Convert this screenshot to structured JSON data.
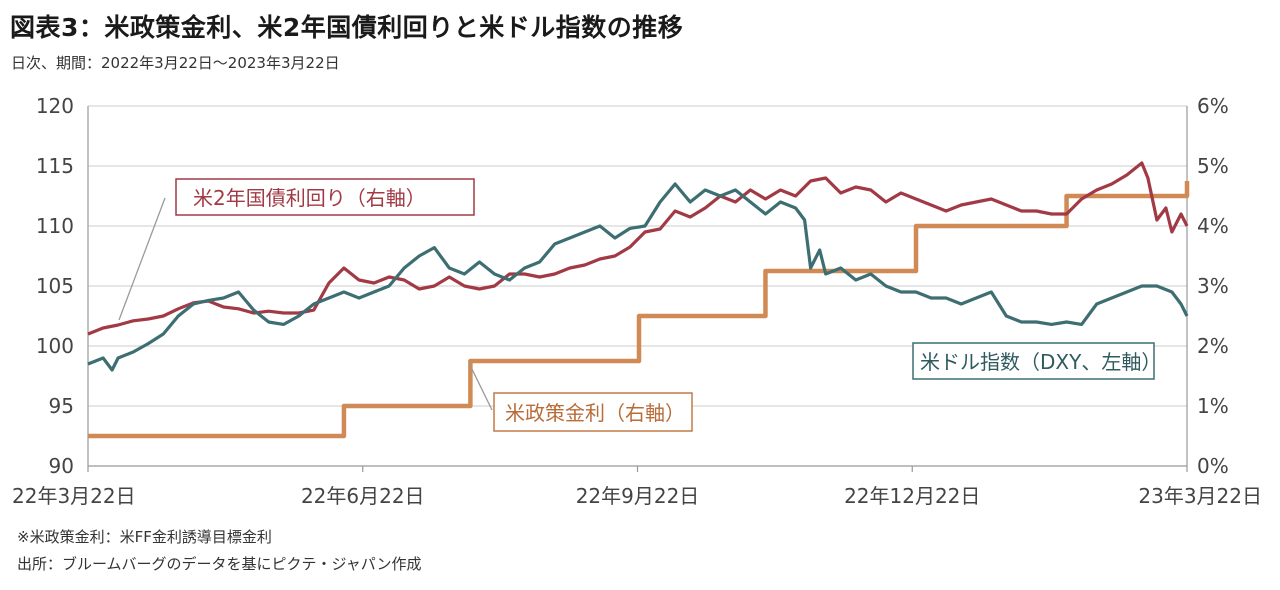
{
  "header": {
    "title": "図表3：米政策金利、米2年国債利回りと米ドル指数の推移",
    "subtitle": "日次、期間：2022年3月22日～2023年3月22日"
  },
  "footnotes": {
    "note1": "※米政策金利：米FF金利誘導目標金利",
    "note2": "出所：ブルームバーグのデータを基にピクテ・ジャパン作成"
  },
  "chart_data": {
    "type": "line",
    "x_ticks": [
      "22年3月22日",
      "22年6月22日",
      "22年9月22日",
      "22年12月22日",
      "23年3月22日"
    ],
    "x_range_days": [
      0,
      365
    ],
    "y_left": {
      "min": 90,
      "max": 120,
      "step": 5,
      "ticks": [
        "90",
        "95",
        "100",
        "105",
        "110",
        "115",
        "120"
      ]
    },
    "y_right": {
      "min": 0,
      "max": 6,
      "step": 1,
      "ticks": [
        "0%",
        "1%",
        "2%",
        "3%",
        "4%",
        "5%",
        "6%"
      ]
    },
    "grid": true,
    "colors": {
      "policy": "#D08A55",
      "yield2y": "#A23A45",
      "dxy": "#3D6E72",
      "grid": "#cccccc"
    },
    "annotations": {
      "yield2y": "米2年国債利回り（右軸）",
      "policy": "米政策金利（右軸）",
      "dxy": "米ドル指数（DXY、左軸）"
    },
    "series": [
      {
        "name": "米政策金利（右軸）",
        "axis": "right",
        "color": "#D08A55",
        "step": true,
        "x": [
          0,
          43,
          85,
          127,
          183,
          225,
          275,
          325,
          365
        ],
        "y": [
          0.5,
          0.5,
          1.0,
          1.75,
          2.5,
          3.25,
          4.0,
          4.5,
          4.75
        ]
      },
      {
        "name": "米2年国債利回り（右軸）",
        "axis": "right",
        "color": "#A23A45",
        "x": [
          0,
          5,
          10,
          15,
          20,
          25,
          30,
          35,
          40,
          45,
          50,
          55,
          60,
          65,
          70,
          75,
          80,
          85,
          90,
          95,
          100,
          105,
          110,
          115,
          120,
          125,
          130,
          135,
          140,
          145,
          150,
          155,
          160,
          165,
          170,
          175,
          180,
          185,
          190,
          195,
          200,
          205,
          210,
          215,
          220,
          225,
          230,
          235,
          240,
          245,
          250,
          255,
          260,
          265,
          270,
          275,
          280,
          285,
          290,
          295,
          300,
          305,
          310,
          315,
          320,
          325,
          330,
          335,
          340,
          345,
          350,
          352,
          355,
          358,
          360,
          363,
          365
        ],
        "y": [
          2.2,
          2.3,
          2.35,
          2.42,
          2.45,
          2.5,
          2.62,
          2.72,
          2.75,
          2.65,
          2.62,
          2.55,
          2.58,
          2.55,
          2.55,
          2.6,
          3.05,
          3.3,
          3.1,
          3.05,
          3.15,
          3.1,
          2.95,
          3.0,
          3.15,
          3.0,
          2.95,
          3.0,
          3.2,
          3.2,
          3.15,
          3.2,
          3.3,
          3.35,
          3.45,
          3.5,
          3.65,
          3.9,
          3.95,
          4.25,
          4.15,
          4.3,
          4.5,
          4.4,
          4.6,
          4.45,
          4.6,
          4.5,
          4.75,
          4.8,
          4.55,
          4.65,
          4.6,
          4.4,
          4.55,
          4.45,
          4.35,
          4.25,
          4.35,
          4.4,
          4.45,
          4.35,
          4.25,
          4.25,
          4.2,
          4.2,
          4.45,
          4.6,
          4.7,
          4.85,
          5.05,
          4.8,
          4.1,
          4.3,
          3.9,
          4.2,
          4.0
        ]
      },
      {
        "name": "米ドル指数（DXY、左軸）",
        "axis": "left",
        "color": "#3D6E72",
        "x": [
          0,
          5,
          8,
          10,
          15,
          20,
          25,
          30,
          35,
          40,
          45,
          50,
          55,
          60,
          65,
          70,
          75,
          80,
          85,
          90,
          95,
          100,
          105,
          110,
          115,
          120,
          125,
          130,
          135,
          140,
          145,
          150,
          155,
          160,
          165,
          170,
          175,
          180,
          185,
          190,
          195,
          200,
          205,
          210,
          215,
          220,
          225,
          230,
          235,
          238,
          240,
          243,
          245,
          250,
          255,
          260,
          265,
          270,
          275,
          280,
          285,
          290,
          295,
          300,
          305,
          310,
          315,
          320,
          325,
          330,
          335,
          340,
          345,
          350,
          355,
          360,
          363,
          365
        ],
        "y": [
          98.5,
          99.0,
          98.0,
          99.0,
          99.5,
          100.2,
          101.0,
          102.5,
          103.5,
          103.8,
          104.0,
          104.5,
          103.0,
          102.0,
          101.8,
          102.5,
          103.5,
          104.0,
          104.5,
          104.0,
          104.5,
          105.0,
          106.5,
          107.5,
          108.2,
          106.5,
          106.0,
          107.0,
          106.0,
          105.5,
          106.5,
          107.0,
          108.5,
          109.0,
          109.5,
          110.0,
          109.0,
          109.8,
          110.0,
          112.0,
          113.5,
          112.0,
          113.0,
          112.5,
          113.0,
          112.0,
          111.0,
          112.0,
          111.5,
          110.5,
          106.5,
          108.0,
          106.0,
          106.5,
          105.5,
          106.0,
          105.0,
          104.5,
          104.5,
          104.0,
          104.0,
          103.5,
          104.0,
          104.5,
          102.5,
          102.0,
          102.0,
          101.8,
          102.0,
          101.8,
          103.5,
          104.0,
          104.5,
          105.0,
          105.0,
          104.5,
          103.5,
          102.5
        ]
      }
    ]
  }
}
